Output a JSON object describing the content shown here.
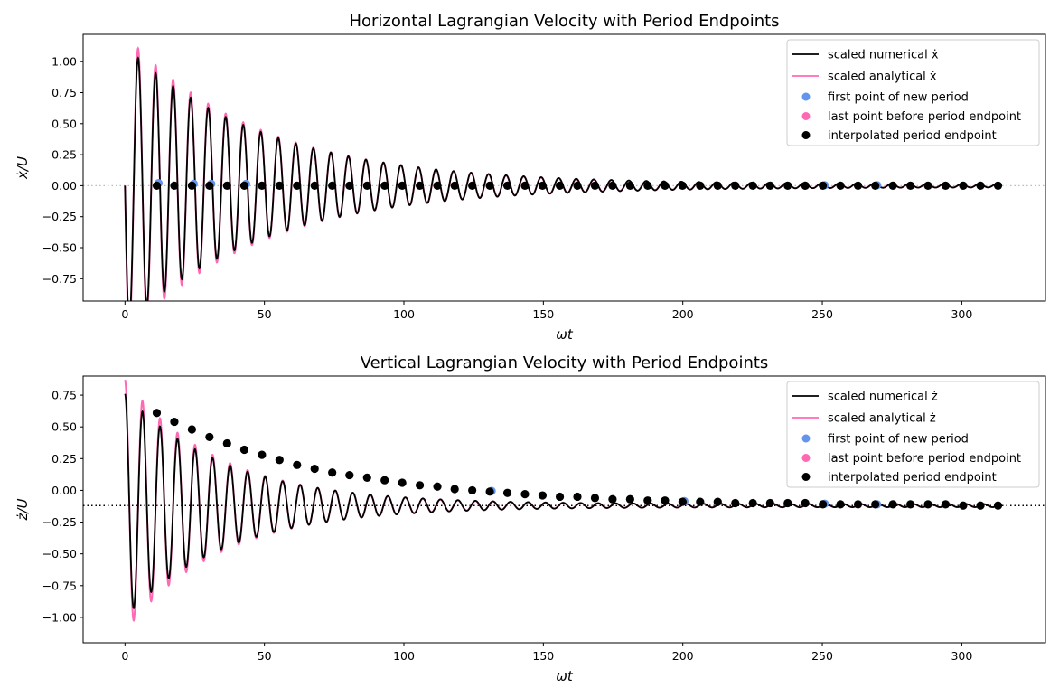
{
  "colors": {
    "numerical": "#000000",
    "analytical": "#ff69b4",
    "first_point": "#6495ed",
    "last_point": "#ff69b4",
    "endpoint": "#000000",
    "top_zero_line": "#bbbbbb",
    "bottom_mean_line": "#000000"
  },
  "chart_data": [
    {
      "type": "line",
      "title": "Horizontal Lagrangian Velocity with Period Endpoints",
      "xlabel": "ωt",
      "ylabel": "ẋ/U",
      "xlim": [
        -15,
        330
      ],
      "ylim": [
        -0.93,
        1.22
      ],
      "xticks": [
        0,
        50,
        100,
        150,
        200,
        250,
        300
      ],
      "xtick_labels": [
        "0",
        "50",
        "100",
        "150",
        "200",
        "250",
        "300"
      ],
      "yticks": [
        -0.75,
        -0.5,
        -0.25,
        0.0,
        0.25,
        0.5,
        0.75,
        1.0
      ],
      "ytick_labels": [
        "−0.75",
        "−0.50",
        "−0.25",
        "0.00",
        "0.25",
        "0.50",
        "0.75",
        "1.00"
      ],
      "reference_line": {
        "y": 0.0,
        "style": "dotted"
      },
      "legend": [
        "scaled numerical ẋ",
        "scaled analytical ẋ",
        "first point of new period",
        "last point before period endpoint",
        "interpolated period endpoint"
      ],
      "legend_position": "top-right",
      "signal": {
        "t_end": 313,
        "period": 6.2832,
        "numerical": {
          "mean": 0.0,
          "amp0": 1.13,
          "tail_amp": 0.012,
          "decay_time": 50,
          "phase": 1.5708
        },
        "analytical": {
          "mean": 0.0,
          "amp0": 1.22,
          "tail_amp": 0.012,
          "decay_time": 48,
          "phase": 1.5708
        }
      },
      "series": [
        {
          "name": "interpolated period endpoint",
          "x": [
            11.4,
            17.7,
            24.0,
            30.3,
            36.6,
            42.8,
            49.1,
            55.4,
            61.7,
            68.0,
            74.3,
            80.5,
            86.8,
            93.1,
            99.4,
            105.7,
            112.0,
            118.2,
            124.5,
            130.8,
            137.1,
            143.4,
            149.7,
            155.9,
            162.2,
            168.5,
            174.8,
            181.1,
            187.4,
            193.6,
            199.9,
            206.2,
            212.5,
            218.8,
            225.1,
            231.3,
            237.6,
            243.9,
            250.2,
            256.5,
            262.8,
            269.0,
            275.3,
            281.6,
            287.9,
            294.2,
            300.5,
            306.7,
            313.0
          ],
          "y": [
            0.0,
            0.0,
            0.0,
            0.0,
            0.0,
            0.0,
            0.0,
            0.0,
            0.0,
            0.0,
            0.0,
            0.0,
            0.0,
            0.0,
            0.0,
            0.0,
            0.0,
            0.0,
            0.0,
            0.0,
            0.0,
            0.0,
            0.0,
            0.0,
            0.0,
            0.0,
            0.0,
            0.0,
            0.0,
            0.0,
            0.0,
            0.0,
            0.0,
            0.0,
            0.0,
            0.0,
            0.0,
            0.0,
            0.0,
            0.0,
            0.0,
            0.0,
            0.0,
            0.0,
            0.0,
            0.0,
            0.0,
            0.0,
            0.0
          ]
        },
        {
          "name": "first point of new period",
          "x": [
            11.4,
            24.0,
            30.3,
            42.8,
            250.2,
            269.0
          ],
          "y": [
            0.02,
            0.015,
            0.015,
            0.015,
            0.004,
            0.004
          ]
        }
      ]
    },
    {
      "type": "line",
      "title": "Vertical Lagrangian Velocity with Period Endpoints",
      "xlabel": "ωt",
      "ylabel": "ż/U",
      "xlim": [
        -15,
        330
      ],
      "ylim": [
        -1.2,
        0.9
      ],
      "xticks": [
        0,
        50,
        100,
        150,
        200,
        250,
        300
      ],
      "xtick_labels": [
        "0",
        "50",
        "100",
        "150",
        "200",
        "250",
        "300"
      ],
      "yticks": [
        -1.0,
        -0.75,
        -0.5,
        -0.25,
        0.0,
        0.25,
        0.5,
        0.75
      ],
      "ytick_labels": [
        "−1.00",
        "−0.75",
        "−0.50",
        "−0.25",
        "0.00",
        "0.25",
        "0.50",
        "0.75"
      ],
      "reference_line": {
        "y": -0.12,
        "style": "dotted"
      },
      "legend": [
        "scaled numerical ż",
        "scaled analytical ż",
        "first point of new period",
        "last point before period endpoint",
        "interpolated period endpoint"
      ],
      "legend_position": "top-right",
      "signal": {
        "t_end": 313,
        "period": 6.2832,
        "numerical": {
          "mean": -0.12,
          "amp0": 0.88,
          "tail_amp": 0.012,
          "decay_time": 36,
          "phase": 0.0
        },
        "analytical": {
          "mean": -0.12,
          "amp0": 0.99,
          "tail_amp": 0.012,
          "decay_time": 34,
          "phase": 0.0
        }
      },
      "series": [
        {
          "name": "interpolated period endpoint",
          "x": [
            11.4,
            17.7,
            24.0,
            30.3,
            36.6,
            42.8,
            49.1,
            55.4,
            61.7,
            68.0,
            74.3,
            80.5,
            86.8,
            93.1,
            99.4,
            105.7,
            112.0,
            118.2,
            124.5,
            130.8,
            137.1,
            143.4,
            149.7,
            155.9,
            162.2,
            168.5,
            174.8,
            181.1,
            187.4,
            193.6,
            199.9,
            206.2,
            212.5,
            218.8,
            225.1,
            231.3,
            237.6,
            243.9,
            250.2,
            256.5,
            262.8,
            269.0,
            275.3,
            281.6,
            287.9,
            294.2,
            300.5,
            306.7,
            313.0
          ],
          "y": [
            0.61,
            0.54,
            0.48,
            0.42,
            0.37,
            0.32,
            0.28,
            0.24,
            0.2,
            0.17,
            0.14,
            0.12,
            0.1,
            0.08,
            0.06,
            0.04,
            0.03,
            0.01,
            0.0,
            -0.01,
            -0.02,
            -0.03,
            -0.04,
            -0.05,
            -0.05,
            -0.06,
            -0.07,
            -0.07,
            -0.08,
            -0.08,
            -0.09,
            -0.09,
            -0.09,
            -0.1,
            -0.1,
            -0.1,
            -0.1,
            -0.1,
            -0.11,
            -0.11,
            -0.11,
            -0.11,
            -0.11,
            -0.11,
            -0.11,
            -0.11,
            -0.12,
            -0.12,
            -0.12
          ]
        },
        {
          "name": "first point of new period",
          "x": [
            130.8,
            199.9,
            250.2,
            269.0
          ],
          "y": [
            -0.005,
            -0.085,
            -0.105,
            -0.11
          ]
        }
      ]
    }
  ]
}
